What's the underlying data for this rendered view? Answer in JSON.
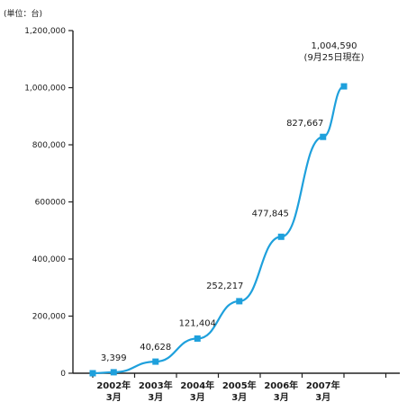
{
  "chart_data": {
    "type": "line",
    "unit_label": "(単位：台)",
    "title": "",
    "xlabel": "",
    "ylabel": "",
    "ylim": [
      0,
      1200000
    ],
    "y_ticks": [
      0,
      200000,
      400000,
      600000,
      800000,
      1000000,
      1200000
    ],
    "y_tick_labels": [
      "0",
      "200,000",
      "400,000",
      "600000",
      "800,000",
      "1,000,000",
      "1,200,000"
    ],
    "x_ticks": [
      "2002年\n3月",
      "2003年\n3月",
      "2004年\n3月",
      "2005年\n3月",
      "2006年\n3月",
      "2007年\n3月"
    ],
    "series": [
      {
        "color": "#1ea0dc",
        "points": [
          {
            "x": 0,
            "y": 0,
            "label": ""
          },
          {
            "x": 0.5,
            "y": 3399,
            "label": "3,399"
          },
          {
            "x": 1.5,
            "y": 40628,
            "label": "40,628"
          },
          {
            "x": 2.5,
            "y": 121404,
            "label": "121,404"
          },
          {
            "x": 3.5,
            "y": 252217,
            "label": "252,217"
          },
          {
            "x": 4.5,
            "y": 477845,
            "label": "477,845"
          },
          {
            "x": 5.5,
            "y": 827667,
            "label": "827,667"
          },
          {
            "x": 6.0,
            "y": 1004590,
            "label": "1,004,590\n(9月25日現在)"
          }
        ]
      }
    ],
    "grid": false,
    "legend": false
  }
}
